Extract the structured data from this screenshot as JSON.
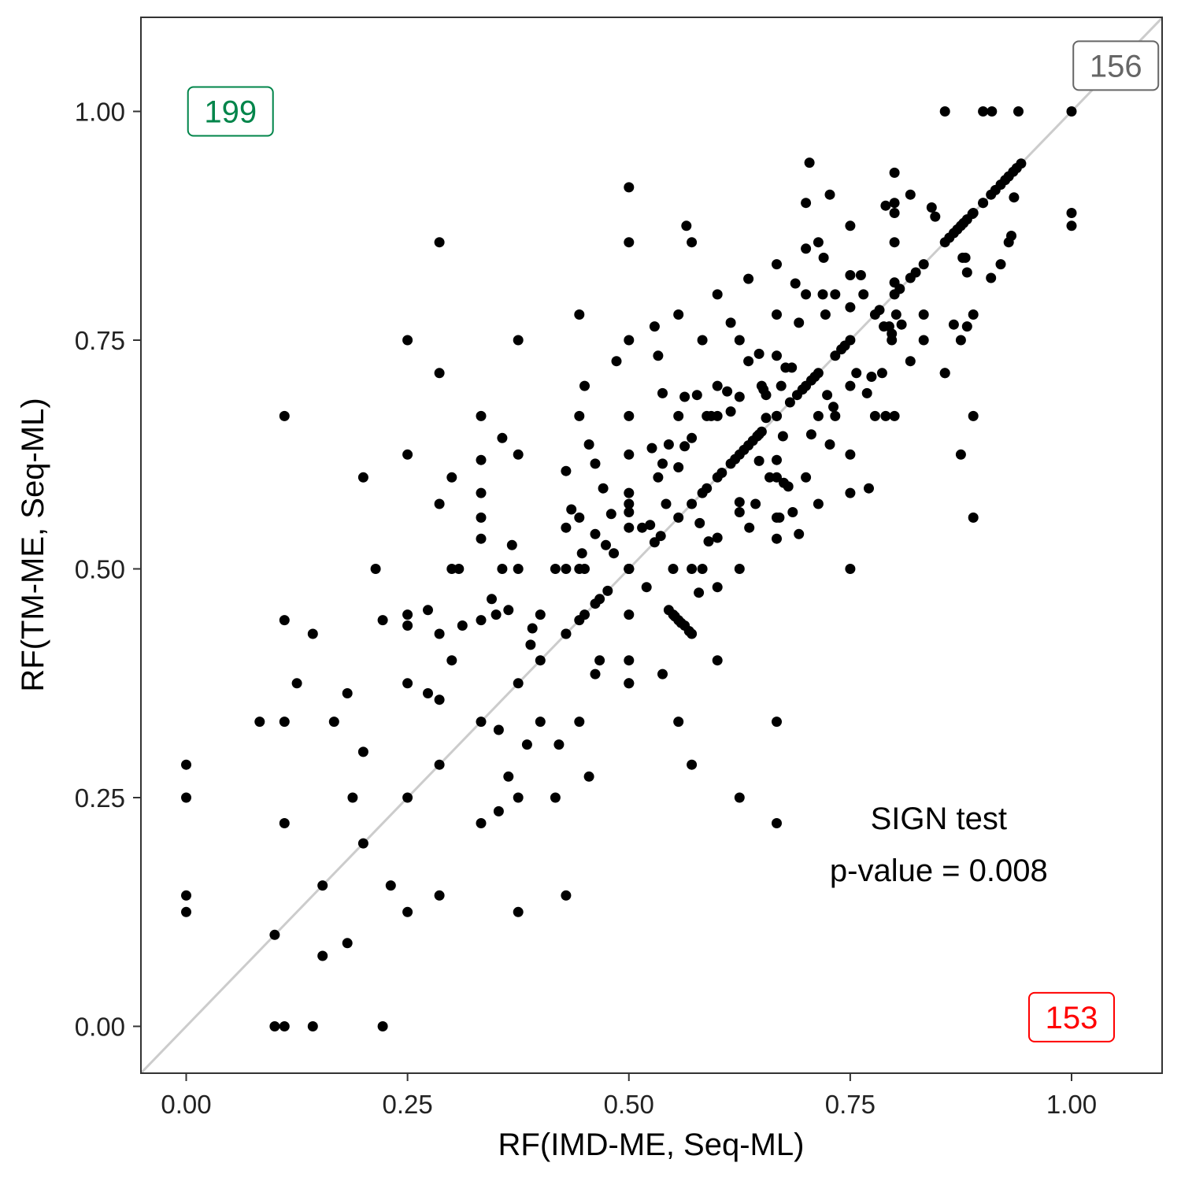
{
  "chart_data": {
    "type": "scatter",
    "xlabel": "RF(IMD-ME, Seq-ML)",
    "ylabel": "RF(TM-ME, Seq-ML)",
    "xlim": [
      -0.05,
      1.1
    ],
    "ylim": [
      -0.05,
      1.1
    ],
    "xticks": [
      "0.00",
      "0.25",
      "0.50",
      "0.75",
      "1.00"
    ],
    "yticks": [
      "0.00",
      "0.25",
      "0.50",
      "0.75",
      "1.00"
    ],
    "reference_line": "y = x",
    "grid": false,
    "count_labels": [
      {
        "text": "199",
        "x": 0.05,
        "y": 1.0,
        "color": "#00854a"
      },
      {
        "text": "156",
        "x": 1.05,
        "y": 1.05,
        "color": "#666666"
      },
      {
        "text": "153",
        "x": 1.0,
        "y": 0.01,
        "color": "#ff0000"
      }
    ],
    "annotation": {
      "line1": "SIGN test",
      "line2": "p-value = 0.008",
      "x": 0.85,
      "y": 0.2
    },
    "points": [
      [
        0.0,
        0.286
      ],
      [
        0.0,
        0.25
      ],
      [
        0.0,
        0.143
      ],
      [
        0.0,
        0.125
      ],
      [
        0.1,
        0.1
      ],
      [
        0.1,
        0.0
      ],
      [
        0.111,
        0.0
      ],
      [
        0.143,
        0.0
      ],
      [
        0.222,
        0.0
      ],
      [
        0.083,
        0.333
      ],
      [
        0.111,
        0.333
      ],
      [
        0.111,
        0.667
      ],
      [
        0.111,
        0.444
      ],
      [
        0.111,
        0.222
      ],
      [
        0.125,
        0.375
      ],
      [
        0.143,
        0.429
      ],
      [
        0.154,
        0.154
      ],
      [
        0.154,
        0.077
      ],
      [
        0.167,
        0.333
      ],
      [
        0.182,
        0.364
      ],
      [
        0.182,
        0.091
      ],
      [
        0.188,
        0.25
      ],
      [
        0.2,
        0.6
      ],
      [
        0.2,
        0.3
      ],
      [
        0.2,
        0.2
      ],
      [
        0.214,
        0.5
      ],
      [
        0.222,
        0.444
      ],
      [
        0.231,
        0.154
      ],
      [
        0.25,
        0.75
      ],
      [
        0.25,
        0.625
      ],
      [
        0.25,
        0.45
      ],
      [
        0.25,
        0.438
      ],
      [
        0.25,
        0.375
      ],
      [
        0.25,
        0.25
      ],
      [
        0.25,
        0.125
      ],
      [
        0.273,
        0.455
      ],
      [
        0.273,
        0.364
      ],
      [
        0.286,
        0.857
      ],
      [
        0.286,
        0.714
      ],
      [
        0.286,
        0.571
      ],
      [
        0.286,
        0.429
      ],
      [
        0.286,
        0.357
      ],
      [
        0.286,
        0.286
      ],
      [
        0.286,
        0.143
      ],
      [
        0.3,
        0.6
      ],
      [
        0.3,
        0.5
      ],
      [
        0.3,
        0.4
      ],
      [
        0.308,
        0.5
      ],
      [
        0.312,
        0.438
      ],
      [
        0.333,
        0.667
      ],
      [
        0.333,
        0.619
      ],
      [
        0.333,
        0.583
      ],
      [
        0.333,
        0.556
      ],
      [
        0.333,
        0.533
      ],
      [
        0.333,
        0.444
      ],
      [
        0.333,
        0.333
      ],
      [
        0.333,
        0.222
      ],
      [
        0.345,
        0.467
      ],
      [
        0.35,
        0.45
      ],
      [
        0.353,
        0.324
      ],
      [
        0.353,
        0.235
      ],
      [
        0.357,
        0.643
      ],
      [
        0.357,
        0.5
      ],
      [
        0.364,
        0.455
      ],
      [
        0.364,
        0.273
      ],
      [
        0.368,
        0.526
      ],
      [
        0.375,
        0.75
      ],
      [
        0.375,
        0.625
      ],
      [
        0.375,
        0.5
      ],
      [
        0.375,
        0.375
      ],
      [
        0.375,
        0.25
      ],
      [
        0.375,
        0.125
      ],
      [
        0.385,
        0.308
      ],
      [
        0.389,
        0.417
      ],
      [
        0.391,
        0.435
      ],
      [
        0.4,
        0.45
      ],
      [
        0.4,
        0.4
      ],
      [
        0.4,
        0.333
      ],
      [
        0.417,
        0.5
      ],
      [
        0.417,
        0.25
      ],
      [
        0.421,
        0.308
      ],
      [
        0.429,
        0.607
      ],
      [
        0.429,
        0.5
      ],
      [
        0.429,
        0.429
      ],
      [
        0.429,
        0.429
      ],
      [
        0.429,
        0.143
      ],
      [
        0.429,
        0.545
      ],
      [
        0.435,
        0.565
      ],
      [
        0.444,
        0.778
      ],
      [
        0.444,
        0.667
      ],
      [
        0.444,
        0.556
      ],
      [
        0.444,
        0.5
      ],
      [
        0.444,
        0.444
      ],
      [
        0.444,
        0.333
      ],
      [
        0.447,
        0.517
      ],
      [
        0.45,
        0.7
      ],
      [
        0.45,
        0.5
      ],
      [
        0.45,
        0.45
      ],
      [
        0.455,
        0.636
      ],
      [
        0.455,
        0.273
      ],
      [
        0.462,
        0.615
      ],
      [
        0.462,
        0.538
      ],
      [
        0.462,
        0.385
      ],
      [
        0.462,
        0.462
      ],
      [
        0.467,
        0.4
      ],
      [
        0.467,
        0.467
      ],
      [
        0.471,
        0.588
      ],
      [
        0.474,
        0.526
      ],
      [
        0.476,
        0.476
      ],
      [
        0.48,
        0.56
      ],
      [
        0.483,
        0.517
      ],
      [
        0.486,
        0.727
      ],
      [
        0.5,
        0.917
      ],
      [
        0.5,
        0.857
      ],
      [
        0.5,
        0.75
      ],
      [
        0.5,
        0.667
      ],
      [
        0.5,
        0.625
      ],
      [
        0.5,
        0.583
      ],
      [
        0.5,
        0.571
      ],
      [
        0.5,
        0.562
      ],
      [
        0.5,
        0.545
      ],
      [
        0.5,
        0.5
      ],
      [
        0.5,
        0.45
      ],
      [
        0.5,
        0.4
      ],
      [
        0.5,
        0.375
      ],
      [
        0.5,
        0.5
      ],
      [
        0.5,
        0.5
      ],
      [
        0.5,
        0.5
      ],
      [
        0.5,
        0.375
      ],
      [
        0.515,
        0.545
      ],
      [
        0.52,
        0.48
      ],
      [
        0.524,
        0.548
      ],
      [
        0.526,
        0.632
      ],
      [
        0.529,
        0.765
      ],
      [
        0.529,
        0.529
      ],
      [
        0.533,
        0.733
      ],
      [
        0.533,
        0.6
      ],
      [
        0.536,
        0.536
      ],
      [
        0.538,
        0.385
      ],
      [
        0.538,
        0.692
      ],
      [
        0.538,
        0.615
      ],
      [
        0.542,
        0.571
      ],
      [
        0.545,
        0.636
      ],
      [
        0.545,
        0.455
      ],
      [
        0.55,
        0.5
      ],
      [
        0.55,
        0.45
      ],
      [
        0.552,
        0.448
      ],
      [
        0.556,
        0.778
      ],
      [
        0.556,
        0.667
      ],
      [
        0.556,
        0.611
      ],
      [
        0.556,
        0.556
      ],
      [
        0.556,
        0.444
      ],
      [
        0.556,
        0.333
      ],
      [
        0.559,
        0.441
      ],
      [
        0.563,
        0.688
      ],
      [
        0.563,
        0.438
      ],
      [
        0.563,
        0.634
      ],
      [
        0.565,
        0.875
      ],
      [
        0.568,
        0.432
      ],
      [
        0.571,
        0.857
      ],
      [
        0.571,
        0.643
      ],
      [
        0.571,
        0.571
      ],
      [
        0.571,
        0.5
      ],
      [
        0.571,
        0.429
      ],
      [
        0.571,
        0.286
      ],
      [
        0.577,
        0.69
      ],
      [
        0.579,
        0.474
      ],
      [
        0.58,
        0.55
      ],
      [
        0.583,
        0.75
      ],
      [
        0.583,
        0.583
      ],
      [
        0.583,
        0.5
      ],
      [
        0.588,
        0.667
      ],
      [
        0.588,
        0.588
      ],
      [
        0.59,
        0.53
      ],
      [
        0.593,
        0.667
      ],
      [
        0.6,
        0.8
      ],
      [
        0.6,
        0.7
      ],
      [
        0.6,
        0.667
      ],
      [
        0.6,
        0.6
      ],
      [
        0.6,
        0.534
      ],
      [
        0.6,
        0.48
      ],
      [
        0.6,
        0.4
      ],
      [
        0.605,
        0.605
      ],
      [
        0.611,
        0.694
      ],
      [
        0.615,
        0.769
      ],
      [
        0.615,
        0.672
      ],
      [
        0.615,
        0.615
      ],
      [
        0.62,
        0.62
      ],
      [
        0.625,
        0.75
      ],
      [
        0.625,
        0.688
      ],
      [
        0.625,
        0.625
      ],
      [
        0.625,
        0.573
      ],
      [
        0.625,
        0.562
      ],
      [
        0.625,
        0.5
      ],
      [
        0.625,
        0.25
      ],
      [
        0.63,
        0.63
      ],
      [
        0.635,
        0.817
      ],
      [
        0.635,
        0.727
      ],
      [
        0.635,
        0.635
      ],
      [
        0.636,
        0.545
      ],
      [
        0.64,
        0.64
      ],
      [
        0.643,
        0.571
      ],
      [
        0.645,
        0.645
      ],
      [
        0.647,
        0.735
      ],
      [
        0.647,
        0.618
      ],
      [
        0.647,
        0.647
      ],
      [
        0.65,
        0.65
      ],
      [
        0.65,
        0.7
      ],
      [
        0.652,
        0.696
      ],
      [
        0.655,
        0.69
      ],
      [
        0.655,
        0.665
      ],
      [
        0.659,
        0.6
      ],
      [
        0.667,
        0.833
      ],
      [
        0.667,
        0.778
      ],
      [
        0.667,
        0.733
      ],
      [
        0.667,
        0.667
      ],
      [
        0.667,
        0.619
      ],
      [
        0.667,
        0.6
      ],
      [
        0.667,
        0.556
      ],
      [
        0.667,
        0.533
      ],
      [
        0.667,
        0.333
      ],
      [
        0.667,
        0.222
      ],
      [
        0.667,
        0.667
      ],
      [
        0.67,
        0.556
      ],
      [
        0.672,
        0.7
      ],
      [
        0.674,
        0.645
      ],
      [
        0.675,
        0.594
      ],
      [
        0.677,
        0.72
      ],
      [
        0.68,
        0.59
      ],
      [
        0.682,
        0.682
      ],
      [
        0.684,
        0.72
      ],
      [
        0.685,
        0.562
      ],
      [
        0.688,
        0.812
      ],
      [
        0.69,
        0.69
      ],
      [
        0.692,
        0.769
      ],
      [
        0.692,
        0.538
      ],
      [
        0.696,
        0.696
      ],
      [
        0.7,
        0.9
      ],
      [
        0.7,
        0.85
      ],
      [
        0.7,
        0.8
      ],
      [
        0.7,
        0.7
      ],
      [
        0.7,
        0.6
      ],
      [
        0.704,
        0.944
      ],
      [
        0.706,
        0.647
      ],
      [
        0.706,
        0.706
      ],
      [
        0.71,
        0.71
      ],
      [
        0.714,
        0.857
      ],
      [
        0.714,
        0.714
      ],
      [
        0.714,
        0.667
      ],
      [
        0.714,
        0.571
      ],
      [
        0.719,
        0.8
      ],
      [
        0.72,
        0.84
      ],
      [
        0.722,
        0.778
      ],
      [
        0.724,
        0.69
      ],
      [
        0.727,
        0.909
      ],
      [
        0.727,
        0.636
      ],
      [
        0.731,
        0.677
      ],
      [
        0.733,
        0.733
      ],
      [
        0.733,
        0.8
      ],
      [
        0.733,
        0.667
      ],
      [
        0.74,
        0.74
      ],
      [
        0.744,
        0.744
      ],
      [
        0.75,
        0.875
      ],
      [
        0.75,
        0.821
      ],
      [
        0.75,
        0.786
      ],
      [
        0.75,
        0.75
      ],
      [
        0.75,
        0.7
      ],
      [
        0.75,
        0.625
      ],
      [
        0.75,
        0.583
      ],
      [
        0.75,
        0.5
      ],
      [
        0.757,
        0.714
      ],
      [
        0.762,
        0.821
      ],
      [
        0.765,
        0.8
      ],
      [
        0.769,
        0.692
      ],
      [
        0.771,
        0.588
      ],
      [
        0.774,
        0.71
      ],
      [
        0.778,
        0.778
      ],
      [
        0.778,
        0.667
      ],
      [
        0.783,
        0.783
      ],
      [
        0.786,
        0.714
      ],
      [
        0.788,
        0.765
      ],
      [
        0.79,
        0.897
      ],
      [
        0.79,
        0.667
      ],
      [
        0.794,
        0.765
      ],
      [
        0.797,
        0.75
      ],
      [
        0.797,
        0.757
      ],
      [
        0.8,
        0.933
      ],
      [
        0.8,
        0.9
      ],
      [
        0.8,
        0.889
      ],
      [
        0.8,
        0.857
      ],
      [
        0.8,
        0.813
      ],
      [
        0.8,
        0.8
      ],
      [
        0.8,
        0.667
      ],
      [
        0.802,
        0.778
      ],
      [
        0.806,
        0.806
      ],
      [
        0.808,
        0.767
      ],
      [
        0.818,
        0.909
      ],
      [
        0.818,
        0.818
      ],
      [
        0.818,
        0.727
      ],
      [
        0.824,
        0.824
      ],
      [
        0.833,
        0.833
      ],
      [
        0.833,
        0.778
      ],
      [
        0.833,
        0.75
      ],
      [
        0.842,
        0.895
      ],
      [
        0.846,
        0.885
      ],
      [
        0.857,
        0.857
      ],
      [
        0.857,
        0.714
      ],
      [
        0.857,
        0.714
      ],
      [
        0.862,
        0.862
      ],
      [
        0.867,
        0.867
      ],
      [
        0.867,
        0.767
      ],
      [
        0.871,
        0.871
      ],
      [
        0.875,
        0.875
      ],
      [
        0.875,
        0.75
      ],
      [
        0.875,
        0.625
      ],
      [
        0.877,
        0.84
      ],
      [
        0.878,
        0.878
      ],
      [
        0.88,
        0.84
      ],
      [
        0.882,
        0.882
      ],
      [
        0.882,
        0.824
      ],
      [
        0.882,
        0.765
      ],
      [
        0.888,
        0.888
      ],
      [
        0.889,
        0.889
      ],
      [
        0.889,
        0.778
      ],
      [
        0.889,
        0.667
      ],
      [
        0.889,
        0.556
      ],
      [
        0.9,
        0.9
      ],
      [
        0.9,
        0.9
      ],
      [
        0.909,
        0.909
      ],
      [
        0.909,
        0.818
      ],
      [
        0.914,
        0.914
      ],
      [
        0.92,
        0.92
      ],
      [
        0.92,
        0.833
      ],
      [
        0.925,
        0.925
      ],
      [
        0.929,
        0.857
      ],
      [
        0.929,
        0.929
      ],
      [
        0.932,
        0.864
      ],
      [
        0.934,
        0.934
      ],
      [
        0.935,
        0.906
      ],
      [
        0.938,
        0.938
      ],
      [
        0.943,
        0.943
      ],
      [
        0.857,
        1.0
      ],
      [
        0.9,
        1.0
      ],
      [
        0.91,
        1.0
      ],
      [
        0.94,
        1.0
      ],
      [
        1.0,
        1.0
      ],
      [
        1.0,
        0.889
      ],
      [
        1.0,
        0.875
      ]
    ]
  }
}
